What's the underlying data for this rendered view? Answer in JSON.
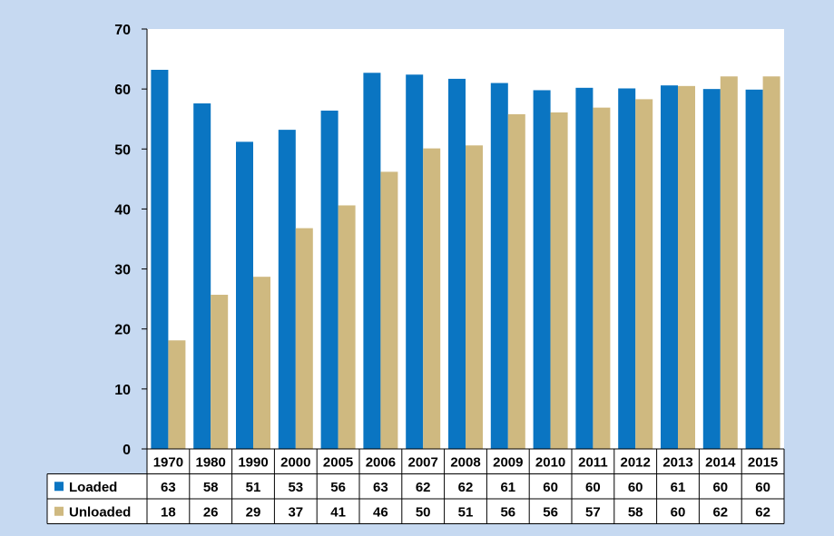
{
  "chart_data": {
    "type": "bar",
    "categories": [
      "1970",
      "1980",
      "1990",
      "2000",
      "2005",
      "2006",
      "2007",
      "2008",
      "2009",
      "2010",
      "2011",
      "2012",
      "2013",
      "2014",
      "2015"
    ],
    "series": [
      {
        "name": "Loaded",
        "color": "#0a75c2",
        "values": [
          63.2,
          57.6,
          51.2,
          53.2,
          56.4,
          62.7,
          62.4,
          61.7,
          61.0,
          59.8,
          60.2,
          60.1,
          60.6,
          60.0,
          59.9
        ],
        "table_values": [
          "63",
          "58",
          "51",
          "53",
          "56",
          "63",
          "62",
          "62",
          "61",
          "60",
          "60",
          "60",
          "61",
          "60",
          "60"
        ]
      },
      {
        "name": "Unloaded",
        "color": "#cfb980",
        "values": [
          18.1,
          25.7,
          28.7,
          36.8,
          40.6,
          46.2,
          50.1,
          50.6,
          55.8,
          56.1,
          56.9,
          58.3,
          60.5,
          62.1,
          62.1
        ],
        "table_values": [
          "18",
          "26",
          "29",
          "37",
          "41",
          "46",
          "50",
          "51",
          "56",
          "56",
          "57",
          "58",
          "60",
          "62",
          "62"
        ]
      }
    ],
    "ylim": [
      0,
      70
    ],
    "yticks": [
      "0",
      "10",
      "20",
      "30",
      "40",
      "50",
      "60",
      "70"
    ],
    "grid": false,
    "legend": "data-table",
    "plot_background": "#ffffff"
  }
}
